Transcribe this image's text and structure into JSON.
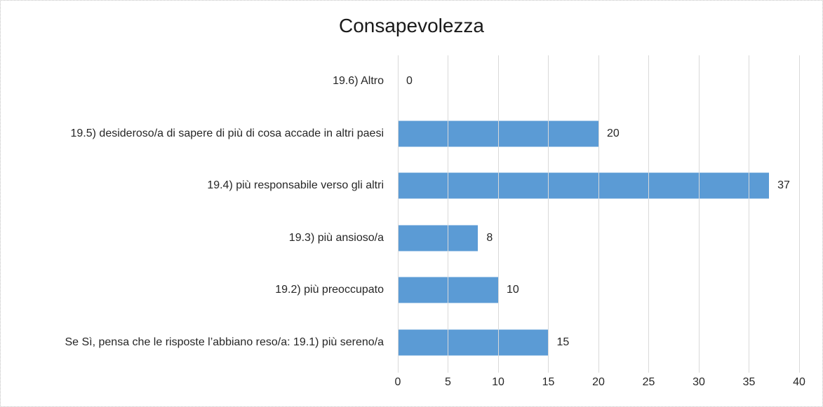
{
  "chart_data": {
    "type": "bar",
    "orientation": "horizontal",
    "title": "Consapevolezza",
    "categories": [
      "19.6) Altro",
      "19.5) desideroso/a di sapere di più di cosa accade in altri paesi",
      "19.4) più responsabile verso gli altri",
      "19.3) più ansioso/a",
      "19.2) più preoccupato",
      "Se Sì, pensa che le risposte l’abbiano reso/a: 19.1) più sereno/a"
    ],
    "values": [
      0,
      20,
      37,
      8,
      10,
      15
    ],
    "data_labels": [
      "0",
      "20",
      "37",
      "8",
      "10",
      "15"
    ],
    "x_ticks": [
      "0",
      "5",
      "10",
      "15",
      "20",
      "25",
      "30",
      "35",
      "40"
    ],
    "xlim": [
      0,
      40
    ],
    "xlabel": "",
    "ylabel": "",
    "grid": "vertical-gridlines-on",
    "legend": "none",
    "colors": {
      "bar": "#5B9BD5",
      "gridline": "#D9D9D9",
      "text": "#262626",
      "title_text": "#1A1A1A",
      "chart_border": "#BFBFBF",
      "background": "#FFFFFF"
    }
  }
}
